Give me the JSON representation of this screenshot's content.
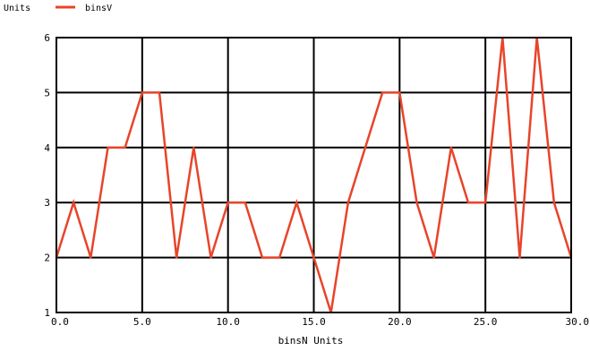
{
  "chart_data": {
    "type": "line",
    "title": "",
    "xlabel": "binsN  Units",
    "ylabel": "Units",
    "xlim": [
      0,
      30
    ],
    "ylim": [
      1,
      6
    ],
    "x_ticks": [
      0,
      5,
      10,
      15,
      20,
      25,
      30
    ],
    "x_tick_labels": [
      "0.0",
      "5.0",
      "10.0",
      "15.0",
      "20.0",
      "25.0",
      "30.0"
    ],
    "y_ticks": [
      1,
      2,
      3,
      4,
      5,
      6
    ],
    "y_tick_labels": [
      "1",
      "2",
      "3",
      "4",
      "5",
      "6"
    ],
    "grid": true,
    "legend_placement": "top-left",
    "series": [
      {
        "name": "binsV",
        "color": "#e8442a",
        "x": [
          0,
          1,
          2,
          3,
          4,
          5,
          6,
          7,
          8,
          9,
          10,
          11,
          12,
          13,
          14,
          15,
          16,
          17,
          18,
          19,
          20,
          21,
          22,
          23,
          24,
          25,
          26,
          27,
          28,
          29,
          30
        ],
        "values": [
          2,
          3,
          2,
          4,
          4,
          5,
          5,
          2,
          4,
          2,
          3,
          3,
          2,
          2,
          3,
          2,
          1,
          3,
          4,
          5,
          5,
          3,
          2,
          4,
          3,
          3,
          6,
          2,
          6,
          3,
          2
        ]
      }
    ]
  }
}
